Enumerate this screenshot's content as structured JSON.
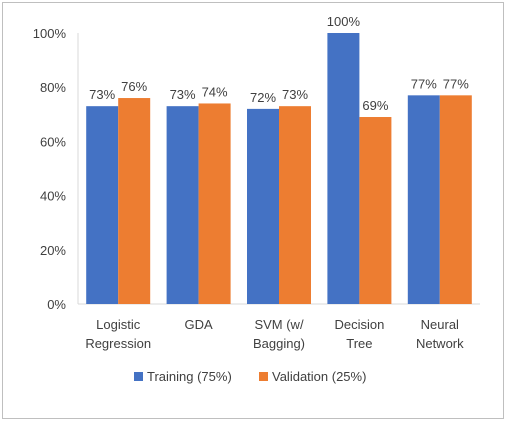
{
  "chart_data": {
    "type": "bar",
    "categories": [
      [
        "Logistic",
        "Regression"
      ],
      [
        "GDA"
      ],
      [
        "SVM (w/",
        "Bagging)"
      ],
      [
        "Decision",
        "Tree"
      ],
      [
        "Neural",
        "Network"
      ]
    ],
    "series": [
      {
        "name": "Training (75%)",
        "color": "#4472c4",
        "values": [
          73,
          73,
          72,
          100,
          77
        ],
        "labels": [
          "73%",
          "73%",
          "72%",
          "100%",
          "77%"
        ]
      },
      {
        "name": "Validation (25%)",
        "color": "#ed7d31",
        "values": [
          76,
          74,
          73,
          69,
          77
        ],
        "labels": [
          "76%",
          "74%",
          "73%",
          "69%",
          "77%"
        ]
      }
    ],
    "ylim": [
      0,
      100
    ],
    "yticks": [
      0,
      20,
      40,
      60,
      80,
      100
    ],
    "yticklabels": [
      "0%",
      "20%",
      "40%",
      "60%",
      "80%",
      "100%"
    ],
    "grid": false,
    "legend_position": "bottom"
  }
}
